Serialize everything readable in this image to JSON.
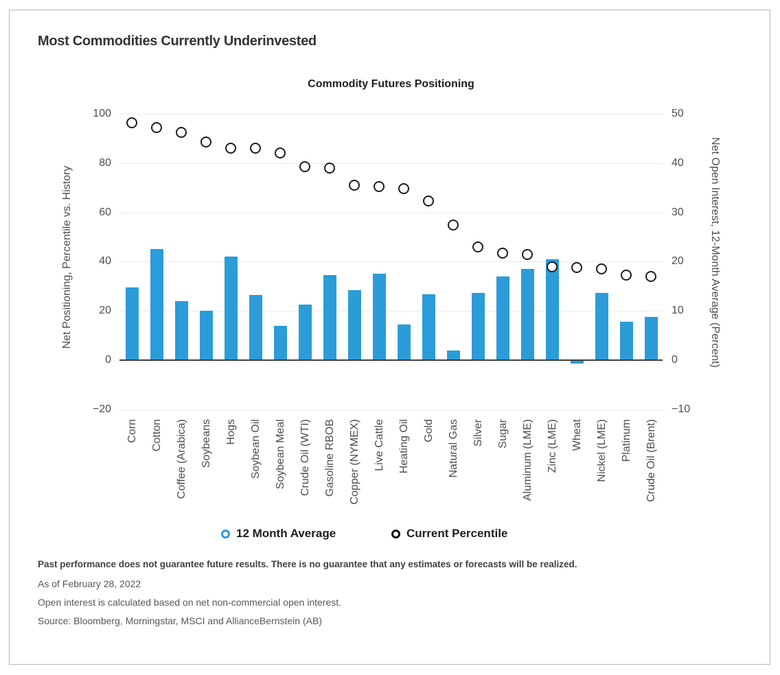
{
  "page": {
    "title": "Most Commodities Currently Underinvested"
  },
  "chart_data": {
    "type": "bar",
    "subtype": "bar+scatter combo, dual axis",
    "title": "Commodity Futures Positioning",
    "categories": [
      "Corn",
      "Cotton",
      "Coffee (Arabica)",
      "Soybeans",
      "Hogs",
      "Soybean Oil",
      "Soybean Meal",
      "Crude Oil (WTI)",
      "Gasoline RBOB",
      "Copper (NYMEX)",
      "Live Cattle",
      "Heating Oil",
      "Gold",
      "Natural Gas",
      "Silver",
      "Sugar",
      "Aluminum (LME)",
      "Zinc (LME)",
      "Wheat",
      "Nickel (LME)",
      "Platinum",
      "Crude Oil (Brent)"
    ],
    "series": [
      {
        "name": "12 Month Average",
        "type": "bar",
        "axis": "right",
        "color": "#2b9cd8",
        "values": [
          14.8,
          22.5,
          12,
          10,
          21,
          13.3,
          7,
          11.3,
          17.3,
          14.2,
          17.6,
          7.2,
          13.4,
          2,
          13.6,
          17,
          18.5,
          20.5,
          -0.5,
          13.7,
          7.8,
          8.8
        ]
      },
      {
        "name": "Current Percentile",
        "type": "scatter",
        "axis": "left",
        "color": "#1c1c1c",
        "values": [
          96.5,
          94.5,
          92.5,
          88.5,
          86,
          86,
          84,
          78.5,
          78,
          71,
          70.5,
          69.5,
          64.5,
          55,
          46,
          43.5,
          43,
          38,
          37.5,
          37,
          34.5,
          34
        ]
      }
    ],
    "left_axis": {
      "label": "Net Positioning, Percentile vs. History",
      "range": [
        -20,
        100
      ],
      "ticks": [
        100,
        80,
        60,
        40,
        20,
        0,
        -20
      ],
      "tick_labels": [
        "100",
        "80",
        "60",
        "40",
        "20",
        "0",
        "−20"
      ]
    },
    "right_axis": {
      "label": "Net Open Interest, 12-Month Average (Percent)",
      "range": [
        -10,
        50
      ],
      "ticks": [
        50,
        40,
        30,
        20,
        10,
        0,
        -10
      ],
      "tick_labels": [
        "50",
        "40",
        "30",
        "20",
        "10",
        "0",
        "−10"
      ]
    },
    "grid": true,
    "legend_position": "bottom",
    "legend": [
      {
        "label": "12 Month Average",
        "marker": "ring",
        "color": "#2b9cd8"
      },
      {
        "label": "Current Percentile",
        "marker": "ring",
        "color": "#111111"
      }
    ]
  },
  "footer": {
    "disclaimer": "Past performance does not guarantee future results. There is no guarantee that any estimates or forecasts will be realized.",
    "as_of": "As of February 28, 2022",
    "note": "Open interest is calculated based on net non-commercial open interest.",
    "source": "Source: Bloomberg, Morningstar, MSCI and AllianceBernstein (AB)"
  },
  "colors": {
    "bar_blue": "#2b9cd8",
    "scatter_ring": "#1c1c1c",
    "axis_line": "#3d3d3d",
    "gridline": "#eaeaea",
    "card_border": "#b5b5b5"
  }
}
